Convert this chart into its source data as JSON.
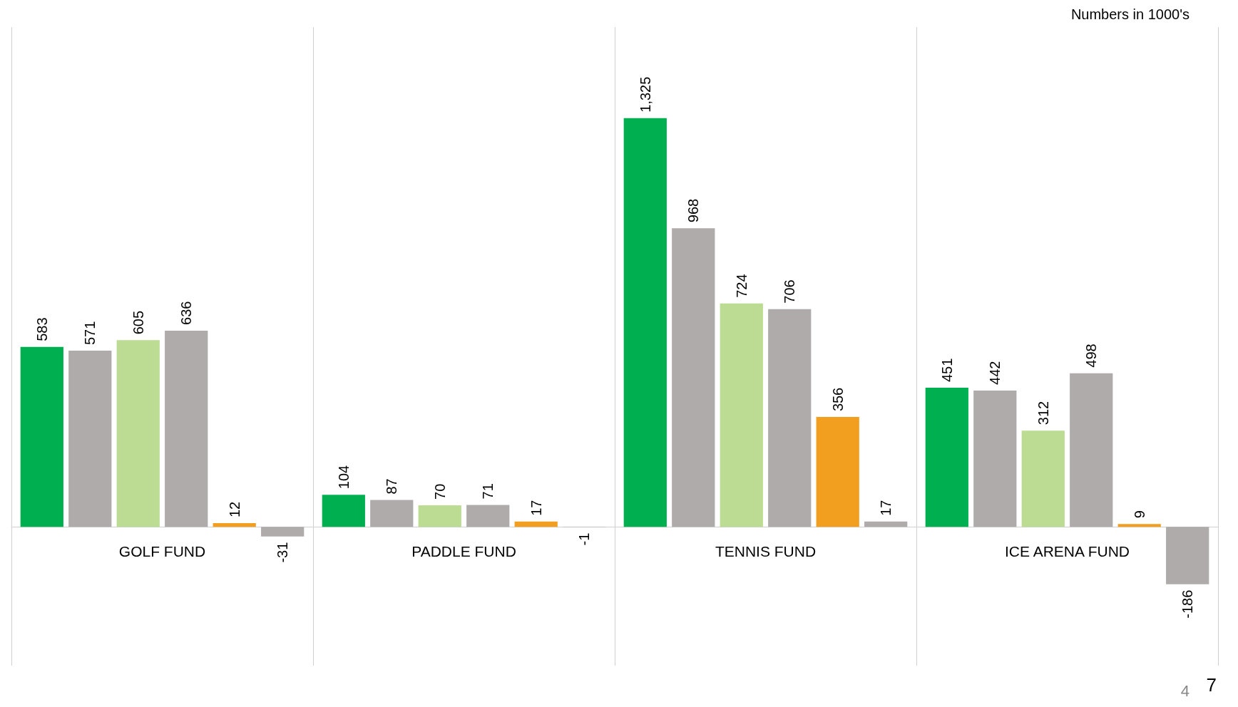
{
  "chart_data": {
    "type": "bar",
    "categories": [
      "GOLF FUND",
      "PADDLE FUND",
      "TENNIS FUND",
      "ICE ARENA FUND"
    ],
    "series": [
      {
        "color": "#00b050",
        "values": [
          583,
          104,
          1325,
          451
        ],
        "value_labels": [
          "583",
          "104",
          "1,325",
          "451"
        ]
      },
      {
        "color": "#afabab",
        "values": [
          571,
          87,
          968,
          442
        ],
        "value_labels": [
          "571",
          "87",
          "968",
          "442"
        ]
      },
      {
        "color": "#bbdc92",
        "values": [
          605,
          70,
          724,
          312
        ],
        "value_labels": [
          "605",
          "70",
          "724",
          "312"
        ]
      },
      {
        "color": "#afabab",
        "values": [
          636,
          71,
          706,
          498
        ],
        "value_labels": [
          "636",
          "71",
          "706",
          "498"
        ]
      },
      {
        "color": "#f29e1f",
        "values": [
          12,
          17,
          356,
          9
        ],
        "value_labels": [
          "12",
          "17",
          "356",
          "9"
        ]
      },
      {
        "color": "#afabab",
        "values": [
          -31,
          -1,
          17,
          -186
        ],
        "value_labels": [
          "-31",
          "-1",
          "17",
          "-186"
        ]
      }
    ],
    "ylim": [
      -450,
      1620
    ],
    "grid": "x",
    "annotations": [
      "Numbers in 1000's",
      "4",
      "7"
    ]
  }
}
